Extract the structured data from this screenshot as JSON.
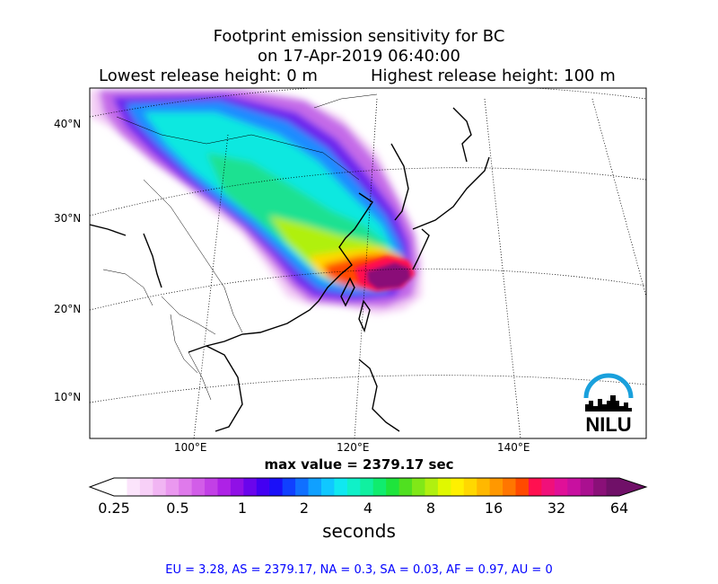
{
  "title": {
    "line1": "Footprint emission sensitivity for BC",
    "line2": "on 17-Apr-2019 06:40:00",
    "lowest_release": "Lowest release height: 0 m",
    "highest_release": "Highest release height: 100 m"
  },
  "axes": {
    "lat_labels": [
      "40°N",
      "30°N",
      "20°N",
      "10°N"
    ],
    "lon_labels": [
      "100°E",
      "120°E",
      "140°E"
    ]
  },
  "max_value_text": "max value = 2379.17 sec",
  "colorbar": {
    "ticks": [
      "0.25",
      "0.5",
      "1",
      "2",
      "4",
      "8",
      "16",
      "32",
      "64"
    ],
    "unit_label": "seconds",
    "colors": [
      "#ffffff",
      "#fbe4fb",
      "#f7d0f7",
      "#f1b5f3",
      "#ea98ef",
      "#df7aeb",
      "#d25de8",
      "#c240e6",
      "#ae22e6",
      "#9010e6",
      "#6a05ec",
      "#4300f2",
      "#1a10f8",
      "#1040ff",
      "#1070ff",
      "#10a0ff",
      "#10c8ff",
      "#10e8f0",
      "#10f0c8",
      "#10f0a0",
      "#10ec6e",
      "#1ee43c",
      "#50e020",
      "#80e818",
      "#b0f010",
      "#e0f800",
      "#fff000",
      "#ffd800",
      "#ffb800",
      "#ff9800",
      "#ff7600",
      "#ff4a00",
      "#ff1050",
      "#f0107a",
      "#e01098",
      "#c810a0",
      "#aa1090",
      "#8a1078",
      "#701068"
    ]
  },
  "footer": "EU = 3.28,  AS = 2379.17,  NA = 0.3,  SA = 0.03,  AF = 0.97,  AU = 0",
  "logo": {
    "text": "NILU",
    "arc_color": "#19a0dc"
  }
}
